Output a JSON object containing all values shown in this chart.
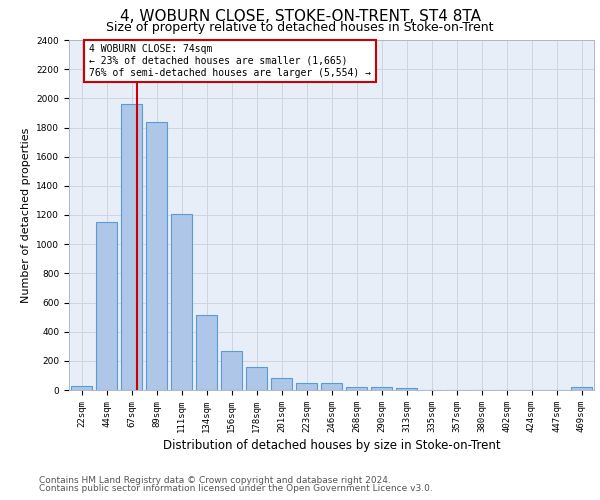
{
  "title": "4, WOBURN CLOSE, STOKE-ON-TRENT, ST4 8TA",
  "subtitle": "Size of property relative to detached houses in Stoke-on-Trent",
  "xlabel": "Distribution of detached houses by size in Stoke-on-Trent",
  "ylabel": "Number of detached properties",
  "categories": [
    "22sqm",
    "44sqm",
    "67sqm",
    "89sqm",
    "111sqm",
    "134sqm",
    "156sqm",
    "178sqm",
    "201sqm",
    "223sqm",
    "246sqm",
    "268sqm",
    "290sqm",
    "313sqm",
    "335sqm",
    "357sqm",
    "380sqm",
    "402sqm",
    "424sqm",
    "447sqm",
    "469sqm"
  ],
  "values": [
    30,
    1150,
    1960,
    1840,
    1210,
    515,
    265,
    155,
    80,
    50,
    45,
    20,
    20,
    15,
    0,
    0,
    0,
    0,
    0,
    0,
    20
  ],
  "bar_color": "#aec6e8",
  "bar_edge_color": "#5b9bd5",
  "bar_edge_width": 0.8,
  "vline_x": 2.2,
  "vline_color": "#cc0000",
  "annotation_text": "4 WOBURN CLOSE: 74sqm\n← 23% of detached houses are smaller (1,665)\n76% of semi-detached houses are larger (5,554) →",
  "annotation_box_edgecolor": "#cc0000",
  "ylim": [
    0,
    2400
  ],
  "yticks": [
    0,
    200,
    400,
    600,
    800,
    1000,
    1200,
    1400,
    1600,
    1800,
    2000,
    2200,
    2400
  ],
  "grid_color": "#cdd5e3",
  "bg_color": "#e8eef8",
  "footer_line1": "Contains HM Land Registry data © Crown copyright and database right 2024.",
  "footer_line2": "Contains public sector information licensed under the Open Government Licence v3.0.",
  "title_fontsize": 11,
  "subtitle_fontsize": 9,
  "xlabel_fontsize": 8.5,
  "ylabel_fontsize": 8,
  "tick_fontsize": 6.5,
  "footer_fontsize": 6.5,
  "ann_fontsize": 7
}
